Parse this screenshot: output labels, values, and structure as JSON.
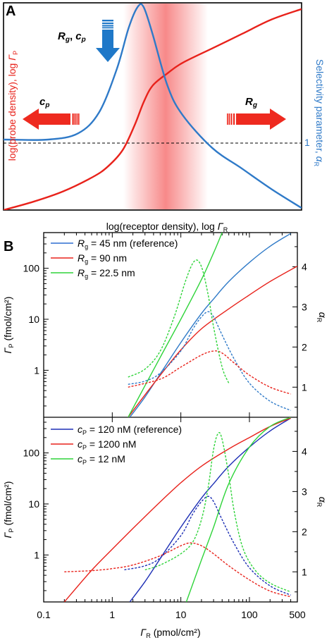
{
  "colors": {
    "red": "#e8221b",
    "blue": "#2f6fd0",
    "darkblue": "#1d2fb5",
    "green": "#2fd43a",
    "arrow_blue": "#1f78c8",
    "arrow_red": "#ee2a1f",
    "axis_blue": "#2f7ac8"
  },
  "panelA": {
    "letter": "A",
    "xlabel_main": "log(receptor density), log ",
    "xlabel_sym": "Γ",
    "xlabel_sub": "R",
    "ylabel_left_main": "log(probe density), log ",
    "ylabel_left_sym": "Γ",
    "ylabel_left_sub": "P",
    "ylabel_right_main": "Selectivity parameter, ",
    "ylabel_right_sym": "α",
    "ylabel_right_sub": "R",
    "ref_tick": "1",
    "down_arrow_label": [
      "R",
      "g",
      ", ",
      "c",
      "p"
    ],
    "left_arrow_label": [
      "c",
      "p"
    ],
    "right_arrow_label": [
      "R",
      "g"
    ]
  },
  "panelB": {
    "letter": "B",
    "xlabel_sym": "Γ",
    "xlabel_sub": "R",
    "xlabel_unit": " (pmol/cm²)",
    "ylabel_sym": "Γ",
    "ylabel_sub": "P",
    "ylabel_unit": " (fmol/cm²)",
    "y2_sym": "α",
    "y2_sub": "R",
    "xticks": [
      "0.1",
      "1",
      "10",
      "100",
      "500"
    ],
    "yticks": [
      "1",
      "10",
      "100"
    ],
    "y2ticks": [
      "1",
      "2",
      "3",
      "4"
    ],
    "top_legend": [
      {
        "sym": "R",
        "sub": "g",
        "text": " = 45 nm (reference)"
      },
      {
        "sym": "R",
        "sub": "g",
        "text": " = 90 nm"
      },
      {
        "sym": "R",
        "sub": "g",
        "text": " = 22.5 nm"
      }
    ],
    "bottom_legend": [
      {
        "sym": "c",
        "sub": "P",
        "text": " = 120 nM (reference)"
      },
      {
        "sym": "c",
        "sub": "P",
        "text": " = 1200 nM"
      },
      {
        "sym": "c",
        "sub": "P",
        "text": " = 12 nM"
      }
    ]
  },
  "chart_data": [
    {
      "type": "line",
      "panel": "A",
      "xlabel": "log(receptor density), log ΓR",
      "ylabel": "log(probe density), log ΓP",
      "ylabel_right": "Selectivity parameter, αR",
      "series": [
        {
          "color": "red",
          "axis": "left",
          "x": [
            0,
            0.1,
            0.2,
            0.3,
            0.35,
            0.4,
            0.44,
            0.47,
            0.5,
            0.55,
            0.6,
            0.7,
            0.8,
            0.9,
            1.0
          ],
          "y": [
            0.0,
            0.04,
            0.09,
            0.16,
            0.21,
            0.29,
            0.41,
            0.52,
            0.6,
            0.66,
            0.71,
            0.78,
            0.85,
            0.92,
            0.97
          ]
        },
        {
          "color": "blue",
          "axis": "right",
          "x": [
            0,
            0.15,
            0.25,
            0.32,
            0.38,
            0.42,
            0.45,
            0.47,
            0.5,
            0.55,
            0.6,
            0.7,
            0.8,
            0.9,
            1.0
          ],
          "y": [
            0.34,
            0.34,
            0.37,
            0.47,
            0.68,
            0.88,
            0.98,
            0.98,
            0.85,
            0.6,
            0.46,
            0.3,
            0.2,
            0.1,
            0.01
          ]
        }
      ],
      "reference_line": {
        "axis": "right",
        "value": 1,
        "style": "dashed"
      }
    },
    {
      "type": "line",
      "panel": "B-top",
      "x_scale": "log",
      "y_scale": "log",
      "xlabel": "ΓR (pmol/cm²)",
      "ylabel": "ΓP (fmol/cm²)",
      "ylabel_right": "αR",
      "xlim": [
        0.1,
        500
      ],
      "ylim": [
        0.12,
        500
      ],
      "y2lim": [
        0.25,
        4.85
      ],
      "series": [
        {
          "name": "Rg = 45 nm (reference)",
          "color": "blue",
          "style": "solid",
          "axis": "left",
          "x": [
            1.8,
            3,
            5,
            10,
            20,
            30,
            50,
            100,
            200,
            400
          ],
          "y": [
            0.12,
            0.3,
            0.85,
            3.5,
            13,
            25,
            55,
            130,
            270,
            480
          ]
        },
        {
          "name": "Rg = 90 nm",
          "color": "red",
          "style": "solid",
          "axis": "left",
          "x": [
            1.7,
            3,
            5,
            10,
            20,
            50,
            100,
            200,
            500
          ],
          "y": [
            0.12,
            0.33,
            0.8,
            2.5,
            6.5,
            16,
            30,
            55,
            110
          ]
        },
        {
          "name": "Rg = 22.5 nm",
          "color": "green",
          "style": "solid",
          "axis": "left",
          "x": [
            1.7,
            3,
            5,
            10,
            20,
            30,
            40
          ],
          "y": [
            0.12,
            0.5,
            1.8,
            10,
            60,
            200,
            500
          ]
        },
        {
          "name": "Rg = 45 nm (reference)",
          "color": "blue",
          "style": "dashed",
          "axis": "right",
          "x": [
            1.7,
            3,
            5,
            10,
            15,
            20,
            25,
            30,
            40,
            60,
            100,
            200,
            400
          ],
          "y": [
            1.07,
            1.15,
            1.35,
            1.9,
            2.45,
            2.75,
            2.88,
            2.75,
            2.3,
            1.7,
            1.1,
            0.65,
            0.42
          ]
        },
        {
          "name": "Rg = 90 nm",
          "color": "red",
          "style": "dashed",
          "axis": "right",
          "x": [
            1.7,
            5,
            10,
            20,
            30,
            40,
            60,
            100,
            200,
            400
          ],
          "y": [
            1.0,
            1.2,
            1.5,
            1.8,
            1.9,
            1.85,
            1.6,
            1.3,
            1.0,
            0.83
          ]
        },
        {
          "name": "Rg = 22.5 nm",
          "color": "green",
          "style": "dashed",
          "axis": "right",
          "x": [
            1.7,
            3,
            5,
            8,
            12,
            16,
            20,
            25,
            30,
            40,
            50
          ],
          "y": [
            1.25,
            1.45,
            1.9,
            2.75,
            3.7,
            4.15,
            4.0,
            3.3,
            2.5,
            1.5,
            1.1
          ]
        }
      ]
    },
    {
      "type": "line",
      "panel": "B-bottom",
      "x_scale": "log",
      "y_scale": "log",
      "xlabel": "ΓR (pmol/cm²)",
      "ylabel": "ΓP (fmol/cm²)",
      "ylabel_right": "αR",
      "xlim": [
        0.1,
        500
      ],
      "ylim": [
        0.12,
        500
      ],
      "y2lim": [
        0.25,
        4.85
      ],
      "series": [
        {
          "name": "cP = 120 nM (reference)",
          "color": "darkblue",
          "style": "solid",
          "axis": "left",
          "x": [
            1.8,
            3,
            5,
            10,
            20,
            30,
            50,
            100,
            200,
            400
          ],
          "y": [
            0.12,
            0.3,
            0.85,
            3.5,
            13,
            25,
            55,
            130,
            270,
            480
          ]
        },
        {
          "name": "cP = 1200 nM",
          "color": "red",
          "style": "solid",
          "axis": "left",
          "x": [
            0.2,
            0.5,
            1,
            2,
            5,
            10,
            20,
            50,
            100,
            200,
            400
          ],
          "y": [
            0.12,
            0.5,
            1.3,
            3.3,
            11,
            26,
            55,
            120,
            200,
            330,
            480
          ]
        },
        {
          "name": "cP = 12 nM",
          "color": "green",
          "style": "solid",
          "axis": "left",
          "x": [
            12,
            20,
            30,
            50,
            100,
            200,
            400
          ],
          "y": [
            0.12,
            0.8,
            3.5,
            25,
            130,
            330,
            500
          ]
        },
        {
          "name": "cP = 120 nM (reference)",
          "color": "darkblue",
          "style": "dashed",
          "axis": "right",
          "x": [
            1.5,
            3,
            5,
            10,
            15,
            20,
            25,
            30,
            40,
            60,
            100,
            200,
            400
          ],
          "y": [
            1.05,
            1.15,
            1.35,
            1.9,
            2.45,
            2.75,
            2.88,
            2.75,
            2.3,
            1.7,
            1.1,
            0.65,
            0.42
          ]
        },
        {
          "name": "cP = 1200 nM",
          "color": "red",
          "style": "dashed",
          "axis": "right",
          "x": [
            0.2,
            0.5,
            1,
            2,
            5,
            10,
            14,
            20,
            30,
            50,
            100,
            200,
            400
          ],
          "y": [
            1.0,
            1.03,
            1.08,
            1.17,
            1.4,
            1.65,
            1.72,
            1.65,
            1.45,
            1.15,
            0.8,
            0.52,
            0.38
          ]
        },
        {
          "name": "cP = 12 nM",
          "color": "green",
          "style": "dashed",
          "axis": "right",
          "x": [
            3,
            5,
            10,
            15,
            20,
            25,
            30,
            35,
            40,
            50,
            60,
            80,
            120,
            200,
            400
          ],
          "y": [
            1.05,
            1.17,
            1.45,
            1.75,
            2.3,
            3.1,
            4.05,
            4.45,
            4.3,
            3.4,
            2.5,
            1.6,
            1.05,
            0.72,
            0.5
          ]
        }
      ]
    }
  ]
}
